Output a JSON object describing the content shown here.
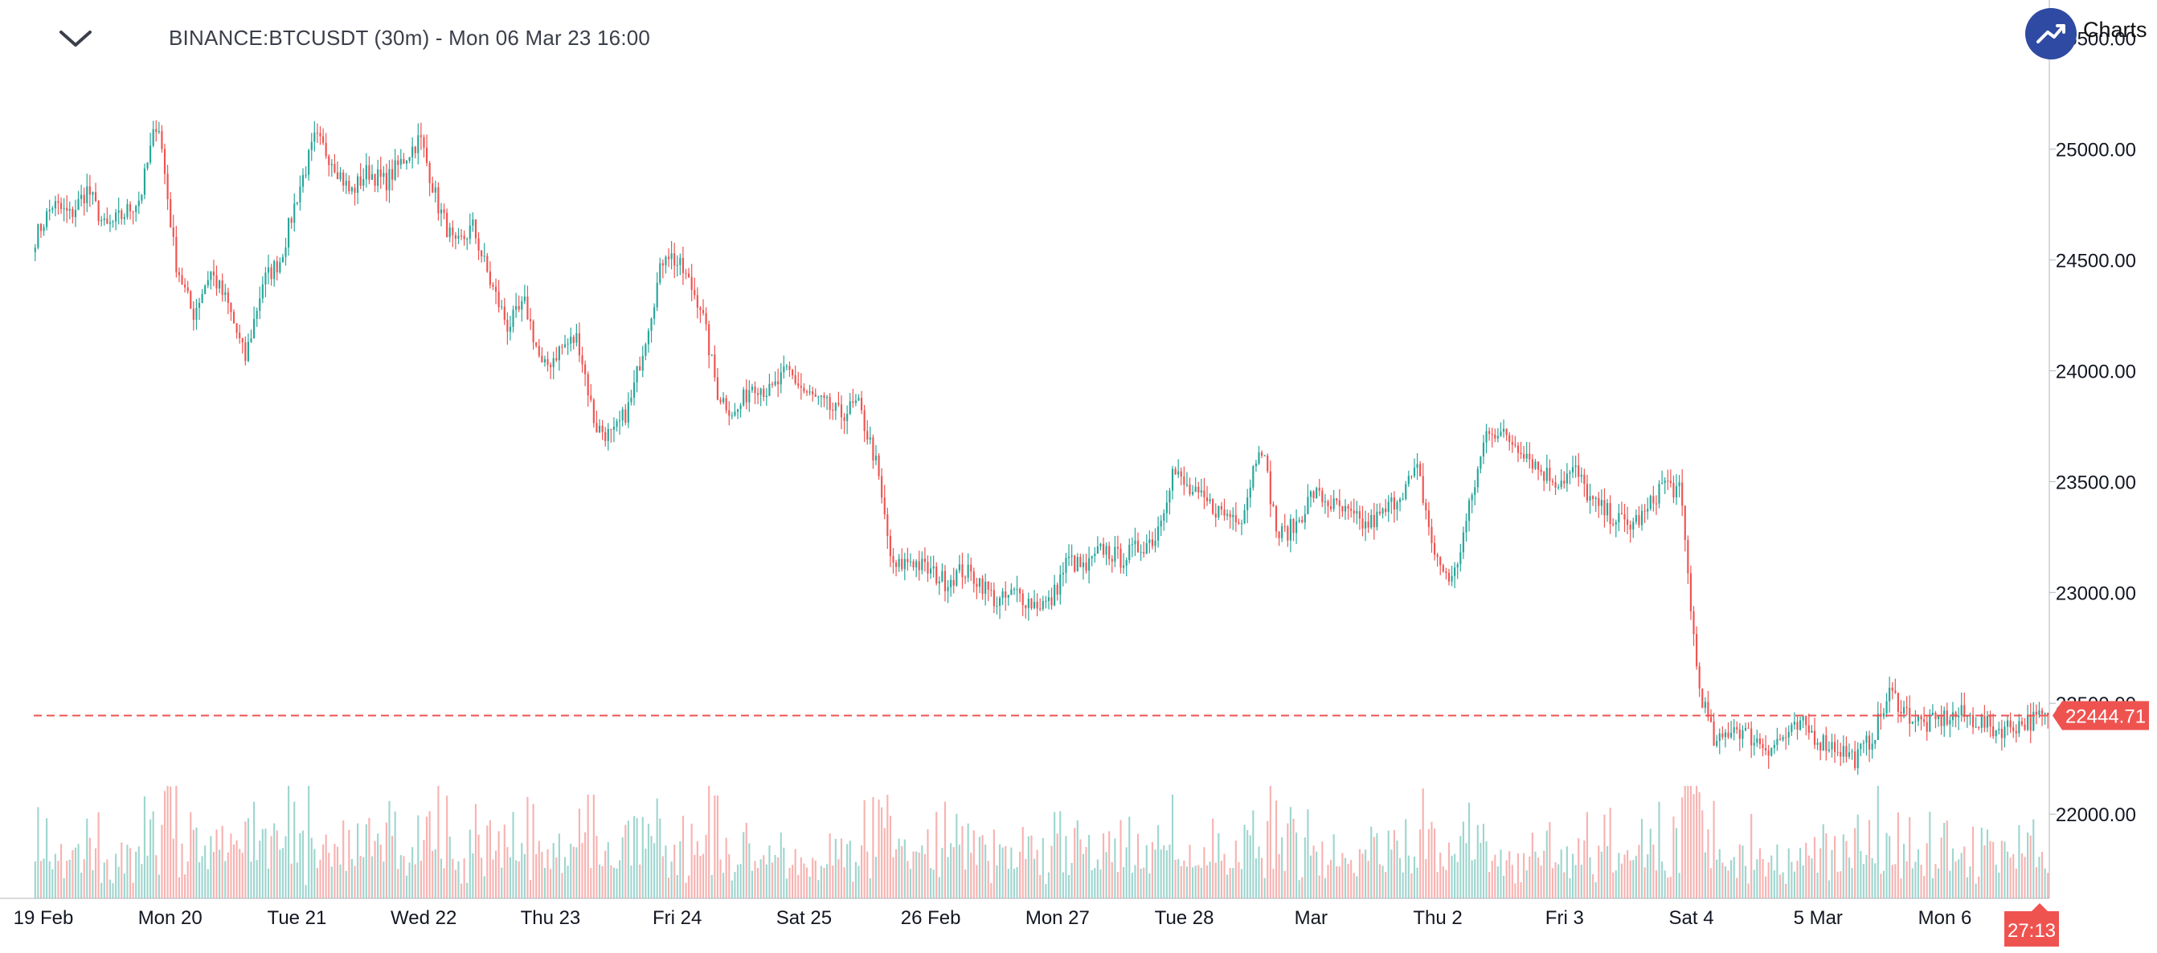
{
  "header": {
    "title": "BINANCE:BTCUSDT (30m) - Mon 06 Mar 23 16:00",
    "brand_text": "Charts",
    "menu_icon": "chevron-down-icon",
    "brand_icon": "trend-up-icon"
  },
  "colors": {
    "up": "#26a69a",
    "down": "#ef5350",
    "up_volume": "#9fd6cf",
    "down_volume": "#f7b3b1",
    "last_price": "#ef5350",
    "axis_text": "#131722",
    "axis_line": "#b2b5be"
  },
  "chart_data": {
    "type": "candlestick",
    "symbol": "BINANCE:BTCUSDT",
    "interval": "30m",
    "y_axis": {
      "ticks": [
        "22000.00",
        "22500.00",
        "23000.00",
        "23500.00",
        "24000.00",
        "24500.00",
        "25000.00",
        "25500.00"
      ],
      "range": [
        21620,
        25600
      ],
      "position": "right"
    },
    "x_axis": {
      "ticks": [
        "19 Feb",
        "Mon 20",
        "Tue 21",
        "Wed 22",
        "Thu 23",
        "Fri 24",
        "Sat 25",
        "26 Feb",
        "Mon 27",
        "Tue 28",
        "Mar",
        "Thu 2",
        "Fri 3",
        "Sat 4",
        "5 Mar",
        "Mon 6"
      ],
      "start": "2023-02-19 00:00",
      "end": "2023-03-06 16:00"
    },
    "price_path": [
      [
        "19 Feb",
        24600
      ],
      [
        "",
        24750
      ],
      [
        "",
        24700
      ],
      [
        "",
        24820
      ],
      [
        "",
        24640
      ],
      [
        "",
        24700
      ],
      [
        "Mon 20",
        24780
      ],
      [
        "",
        25150
      ],
      [
        "",
        24500
      ],
      [
        "",
        24250
      ],
      [
        "",
        24450
      ],
      [
        "",
        24300
      ],
      [
        "",
        24050
      ],
      [
        "",
        24400
      ],
      [
        "",
        24500
      ],
      [
        "Tue 21",
        24800
      ],
      [
        "",
        25050
      ],
      [
        "",
        24950
      ],
      [
        "",
        24800
      ],
      [
        "",
        24900
      ],
      [
        "",
        24850
      ],
      [
        "",
        24950
      ],
      [
        "",
        25050
      ],
      [
        "Wed 22",
        24750
      ],
      [
        "",
        24550
      ],
      [
        "",
        24650
      ],
      [
        "",
        24400
      ],
      [
        "",
        24200
      ],
      [
        "",
        24300
      ],
      [
        "",
        24000
      ],
      [
        "",
        24100
      ],
      [
        "",
        24150
      ],
      [
        "Thu 23",
        23750
      ],
      [
        "",
        23700
      ],
      [
        "",
        23850
      ],
      [
        "",
        24200
      ],
      [
        "",
        24550
      ],
      [
        "",
        24450
      ],
      [
        "",
        24300
      ],
      [
        "",
        23900
      ],
      [
        "",
        23800
      ],
      [
        "Fri 24",
        23950
      ],
      [
        "",
        23900
      ],
      [
        "",
        24000
      ],
      [
        "",
        23900
      ],
      [
        "",
        23850
      ],
      [
        "",
        23800
      ],
      [
        "",
        23850
      ],
      [
        "",
        23600
      ],
      [
        "",
        23100
      ],
      [
        "Sat 25",
        23150
      ],
      [
        "",
        23100
      ],
      [
        "",
        23050
      ],
      [
        "",
        23100
      ],
      [
        "",
        23050
      ],
      [
        "",
        22950
      ],
      [
        "",
        23000
      ],
      [
        "",
        22950
      ],
      [
        "26 Feb",
        22950
      ],
      [
        "",
        23150
      ],
      [
        "",
        23100
      ],
      [
        "",
        23200
      ],
      [
        "",
        23150
      ],
      [
        "",
        23200
      ],
      [
        "",
        23250
      ],
      [
        "Mon 27",
        23550
      ],
      [
        "",
        23450
      ],
      [
        "",
        23400
      ],
      [
        "",
        23350
      ],
      [
        "",
        23350
      ],
      [
        "",
        23700
      ],
      [
        "",
        23250
      ],
      [
        "",
        23300
      ],
      [
        "",
        23450
      ],
      [
        "Tue 28",
        23400
      ],
      [
        "",
        23350
      ],
      [
        "",
        23300
      ],
      [
        "",
        23350
      ],
      [
        "",
        23450
      ],
      [
        "",
        23550
      ],
      [
        "",
        23150
      ],
      [
        "Mar",
        23050
      ],
      [
        "",
        23400
      ],
      [
        "",
        23750
      ],
      [
        "",
        23700
      ],
      [
        "",
        23650
      ],
      [
        "",
        23550
      ],
      [
        "Thu 2",
        23500
      ],
      [
        "",
        23550
      ],
      [
        "",
        23400
      ],
      [
        "",
        23350
      ],
      [
        "",
        23300
      ],
      [
        "",
        23350
      ],
      [
        "",
        23500
      ],
      [
        "",
        23450
      ],
      [
        "Fri 3",
        22600
      ],
      [
        "",
        22300
      ],
      [
        "",
        22400
      ],
      [
        "",
        22350
      ],
      [
        "",
        22300
      ],
      [
        "",
        22350
      ],
      [
        "",
        22400
      ],
      [
        "",
        22330
      ],
      [
        "",
        22300
      ],
      [
        "",
        22250
      ],
      [
        "",
        22350
      ],
      [
        "5 Mar",
        22550
      ],
      [
        "",
        22450
      ],
      [
        "",
        22400
      ],
      [
        "",
        22430
      ],
      [
        "",
        22450
      ],
      [
        "",
        22420
      ],
      [
        "Mon 6",
        22380
      ],
      [
        "",
        22400
      ],
      [
        "",
        22420
      ],
      [
        "",
        22444.71
      ]
    ],
    "last_price": "22444.71",
    "countdown": "27:13"
  }
}
